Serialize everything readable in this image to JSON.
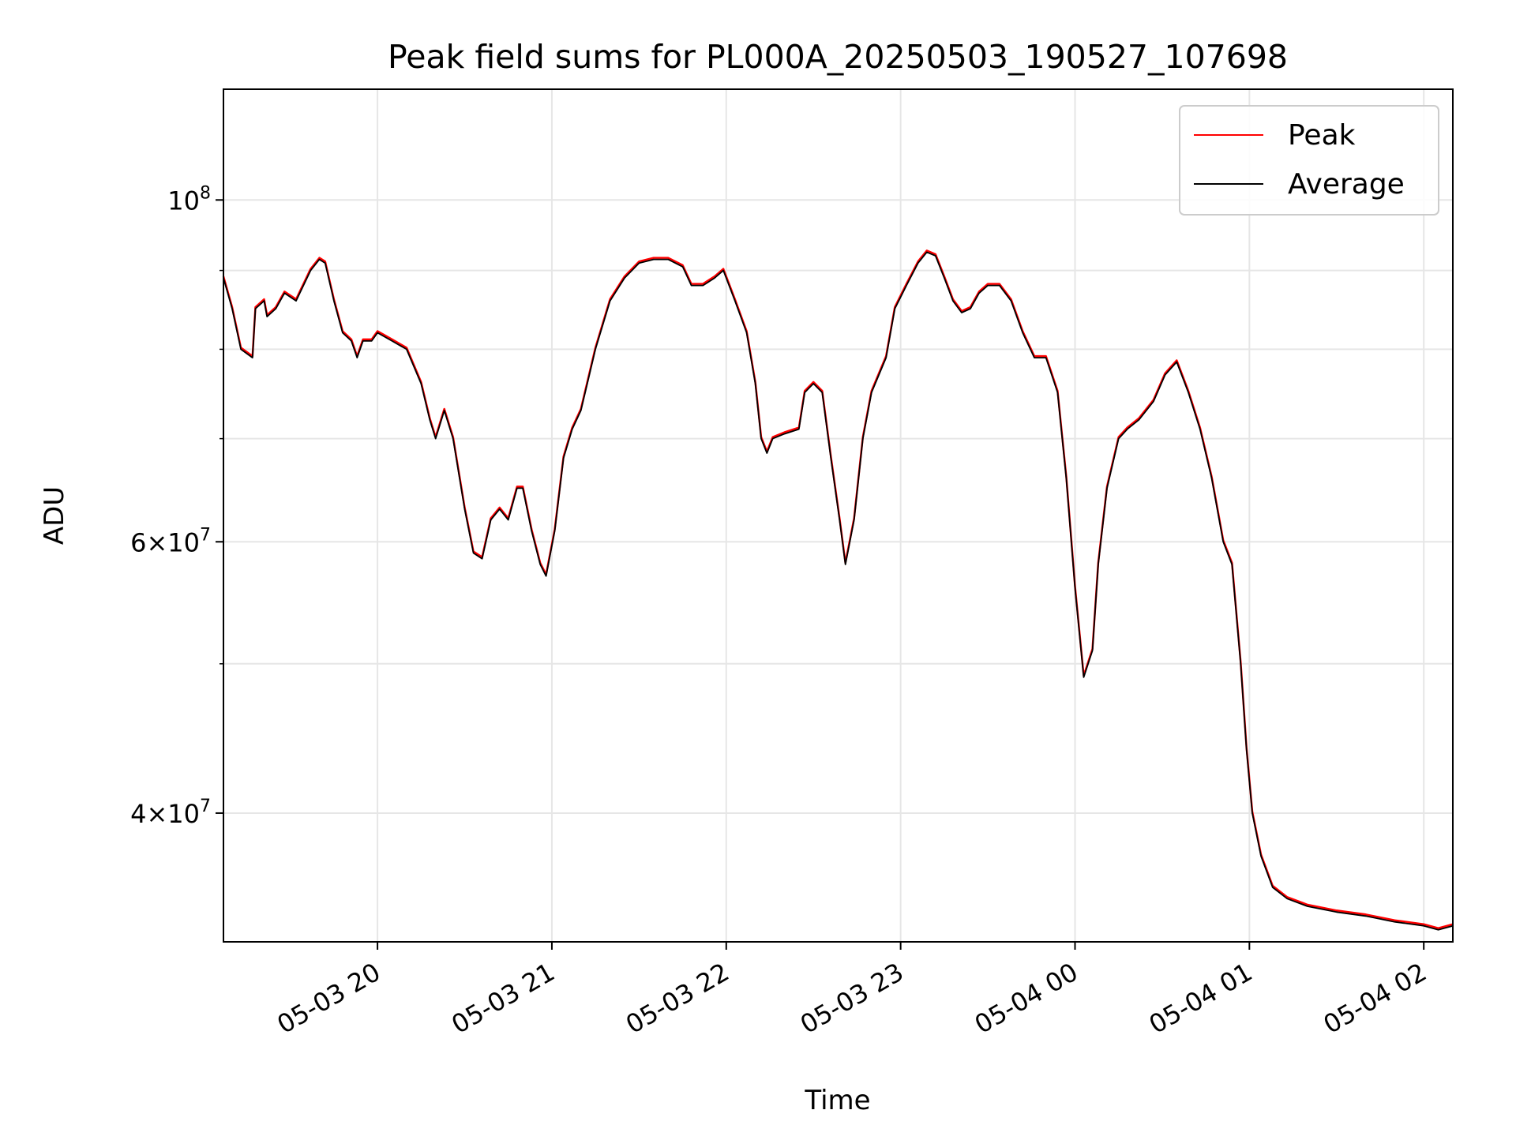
{
  "chart_data": {
    "type": "line",
    "title": "Peak field sums for PL000A_20250503_190527_107698",
    "xlabel": "Time",
    "ylabel": "ADU",
    "y_scale": "log",
    "x_range": [
      "2025-05-03 19:07",
      "2025-05-04 02:10"
    ],
    "y_range": [
      33000000,
      118000000
    ],
    "grid": true,
    "legend_position": "top-right",
    "x_ticks": [
      {
        "time": "2025-05-03 20:00",
        "label": "05-03 20"
      },
      {
        "time": "2025-05-03 21:00",
        "label": "05-03 21"
      },
      {
        "time": "2025-05-03 22:00",
        "label": "05-03 22"
      },
      {
        "time": "2025-05-03 23:00",
        "label": "05-03 23"
      },
      {
        "time": "2025-05-04 00:00",
        "label": "05-04 00"
      },
      {
        "time": "2025-05-04 01:00",
        "label": "05-04 01"
      },
      {
        "time": "2025-05-04 02:00",
        "label": "05-04 02"
      }
    ],
    "y_major_ticks": [
      {
        "value": 40000000,
        "mantissa": "4",
        "exp": "7"
      },
      {
        "value": 60000000,
        "mantissa": "6",
        "exp": "7"
      },
      {
        "value": 100000000,
        "mantissa": "",
        "exp": "8"
      }
    ],
    "y_minor_gridlines": [
      50000000,
      70000000,
      80000000,
      90000000
    ],
    "series": [
      {
        "name": "Average",
        "color": "#000000",
        "points": [
          [
            "2025-05-03 19:07",
            89000000
          ],
          [
            "2025-05-03 19:10",
            85000000
          ],
          [
            "2025-05-03 19:13",
            80000000
          ],
          [
            "2025-05-03 19:17",
            79000000
          ],
          [
            "2025-05-03 19:18",
            85000000
          ],
          [
            "2025-05-03 19:21",
            86000000
          ],
          [
            "2025-05-03 19:22",
            84000000
          ],
          [
            "2025-05-03 19:25",
            85000000
          ],
          [
            "2025-05-03 19:28",
            87000000
          ],
          [
            "2025-05-03 19:32",
            86000000
          ],
          [
            "2025-05-03 19:37",
            90000000
          ],
          [
            "2025-05-03 19:40",
            91500000
          ],
          [
            "2025-05-03 19:42",
            91000000
          ],
          [
            "2025-05-03 19:45",
            86000000
          ],
          [
            "2025-05-03 19:48",
            82000000
          ],
          [
            "2025-05-03 19:51",
            81000000
          ],
          [
            "2025-05-03 19:53",
            79000000
          ],
          [
            "2025-05-03 19:55",
            81000000
          ],
          [
            "2025-05-03 19:58",
            81000000
          ],
          [
            "2025-05-03 20:00",
            82000000
          ],
          [
            "2025-05-03 20:05",
            81000000
          ],
          [
            "2025-05-03 20:10",
            80000000
          ],
          [
            "2025-05-03 20:15",
            76000000
          ],
          [
            "2025-05-03 20:18",
            72000000
          ],
          [
            "2025-05-03 20:20",
            70000000
          ],
          [
            "2025-05-03 20:23",
            73000000
          ],
          [
            "2025-05-03 20:26",
            70000000
          ],
          [
            "2025-05-03 20:30",
            63000000
          ],
          [
            "2025-05-03 20:33",
            59000000
          ],
          [
            "2025-05-03 20:36",
            58500000
          ],
          [
            "2025-05-03 20:39",
            62000000
          ],
          [
            "2025-05-03 20:42",
            63000000
          ],
          [
            "2025-05-03 20:45",
            62000000
          ],
          [
            "2025-05-03 20:48",
            65000000
          ],
          [
            "2025-05-03 20:50",
            65000000
          ],
          [
            "2025-05-03 20:53",
            61000000
          ],
          [
            "2025-05-03 20:56",
            58000000
          ],
          [
            "2025-05-03 20:58",
            57000000
          ],
          [
            "2025-05-03 21:01",
            61000000
          ],
          [
            "2025-05-03 21:04",
            68000000
          ],
          [
            "2025-05-03 21:07",
            71000000
          ],
          [
            "2025-05-03 21:10",
            73000000
          ],
          [
            "2025-05-03 21:15",
            80000000
          ],
          [
            "2025-05-03 21:20",
            86000000
          ],
          [
            "2025-05-03 21:25",
            89000000
          ],
          [
            "2025-05-03 21:30",
            91000000
          ],
          [
            "2025-05-03 21:35",
            91500000
          ],
          [
            "2025-05-03 21:40",
            91500000
          ],
          [
            "2025-05-03 21:45",
            90500000
          ],
          [
            "2025-05-03 21:48",
            88000000
          ],
          [
            "2025-05-03 21:52",
            88000000
          ],
          [
            "2025-05-03 21:56",
            89000000
          ],
          [
            "2025-05-03 21:59",
            90000000
          ],
          [
            "2025-05-03 22:03",
            86000000
          ],
          [
            "2025-05-03 22:07",
            82000000
          ],
          [
            "2025-05-03 22:10",
            76000000
          ],
          [
            "2025-05-03 22:12",
            70000000
          ],
          [
            "2025-05-03 22:14",
            68500000
          ],
          [
            "2025-05-03 22:16",
            70000000
          ],
          [
            "2025-05-03 22:20",
            70500000
          ],
          [
            "2025-05-03 22:25",
            71000000
          ],
          [
            "2025-05-03 22:27",
            75000000
          ],
          [
            "2025-05-03 22:30",
            76000000
          ],
          [
            "2025-05-03 22:33",
            75000000
          ],
          [
            "2025-05-03 22:36",
            68000000
          ],
          [
            "2025-05-03 22:39",
            62000000
          ],
          [
            "2025-05-03 22:41",
            58000000
          ],
          [
            "2025-05-03 22:44",
            62000000
          ],
          [
            "2025-05-03 22:47",
            70000000
          ],
          [
            "2025-05-03 22:50",
            75000000
          ],
          [
            "2025-05-03 22:55",
            79000000
          ],
          [
            "2025-05-03 22:58",
            85000000
          ],
          [
            "2025-05-03 23:02",
            88000000
          ],
          [
            "2025-05-03 23:06",
            91000000
          ],
          [
            "2025-05-03 23:09",
            92500000
          ],
          [
            "2025-05-03 23:12",
            92000000
          ],
          [
            "2025-05-03 23:15",
            89000000
          ],
          [
            "2025-05-03 23:18",
            86000000
          ],
          [
            "2025-05-03 23:21",
            84500000
          ],
          [
            "2025-05-03 23:24",
            85000000
          ],
          [
            "2025-05-03 23:27",
            87000000
          ],
          [
            "2025-05-03 23:30",
            88000000
          ],
          [
            "2025-05-03 23:34",
            88000000
          ],
          [
            "2025-05-03 23:38",
            86000000
          ],
          [
            "2025-05-03 23:42",
            82000000
          ],
          [
            "2025-05-03 23:46",
            79000000
          ],
          [
            "2025-05-03 23:50",
            79000000
          ],
          [
            "2025-05-03 23:54",
            75000000
          ],
          [
            "2025-05-03 23:57",
            66000000
          ],
          [
            "2025-05-04 00:00",
            56000000
          ],
          [
            "2025-05-04 00:03",
            49000000
          ],
          [
            "2025-05-04 00:06",
            51000000
          ],
          [
            "2025-05-04 00:08",
            58000000
          ],
          [
            "2025-05-04 00:11",
            65000000
          ],
          [
            "2025-05-04 00:15",
            70000000
          ],
          [
            "2025-05-04 00:18",
            71000000
          ],
          [
            "2025-05-04 00:22",
            72000000
          ],
          [
            "2025-05-04 00:27",
            74000000
          ],
          [
            "2025-05-04 00:31",
            77000000
          ],
          [
            "2025-05-04 00:35",
            78500000
          ],
          [
            "2025-05-04 00:39",
            75000000
          ],
          [
            "2025-05-04 00:43",
            71000000
          ],
          [
            "2025-05-04 00:47",
            66000000
          ],
          [
            "2025-05-04 00:51",
            60000000
          ],
          [
            "2025-05-04 00:54",
            58000000
          ],
          [
            "2025-05-04 00:57",
            50000000
          ],
          [
            "2025-05-04 00:59",
            44000000
          ],
          [
            "2025-05-04 01:01",
            40000000
          ],
          [
            "2025-05-04 01:04",
            37500000
          ],
          [
            "2025-05-04 01:08",
            35800000
          ],
          [
            "2025-05-04 01:13",
            35200000
          ],
          [
            "2025-05-04 01:20",
            34800000
          ],
          [
            "2025-05-04 01:30",
            34500000
          ],
          [
            "2025-05-04 01:40",
            34300000
          ],
          [
            "2025-05-04 01:50",
            34000000
          ],
          [
            "2025-05-04 02:00",
            33800000
          ],
          [
            "2025-05-04 02:05",
            33600000
          ],
          [
            "2025-05-04 02:10",
            33800000
          ]
        ]
      },
      {
        "name": "Peak",
        "color": "#ff0000",
        "points": []
      }
    ]
  }
}
